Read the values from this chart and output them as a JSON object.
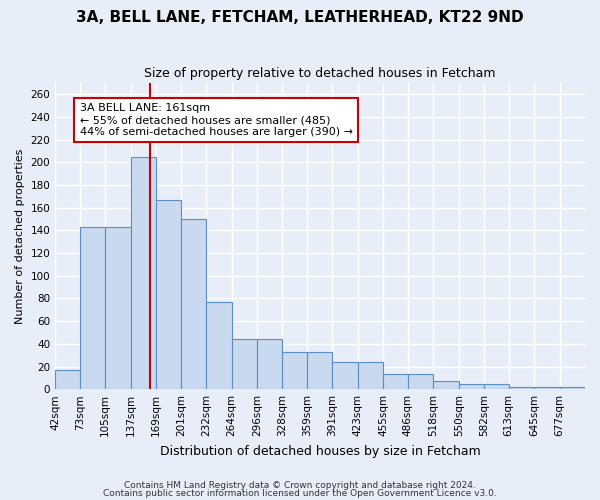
{
  "title1": "3A, BELL LANE, FETCHAM, LEATHERHEAD, KT22 9ND",
  "title2": "Size of property relative to detached houses in Fetcham",
  "xlabel": "Distribution of detached houses by size in Fetcham",
  "ylabel": "Number of detached properties",
  "bin_labels": [
    "42sqm",
    "73sqm",
    "105sqm",
    "137sqm",
    "169sqm",
    "201sqm",
    "232sqm",
    "264sqm",
    "296sqm",
    "328sqm",
    "359sqm",
    "391sqm",
    "423sqm",
    "455sqm",
    "486sqm",
    "518sqm",
    "550sqm",
    "582sqm",
    "613sqm",
    "645sqm",
    "677sqm"
  ],
  "bin_edges": [
    42,
    73,
    105,
    137,
    169,
    201,
    232,
    264,
    296,
    328,
    359,
    391,
    423,
    455,
    486,
    518,
    550,
    582,
    613,
    645,
    677
  ],
  "bar_heights": [
    17,
    143,
    143,
    205,
    167,
    150,
    77,
    44,
    44,
    33,
    33,
    24,
    24,
    13,
    13,
    7,
    5,
    5,
    2,
    2,
    2
  ],
  "bar_color": "#c9d9ef",
  "bar_edge_color": "#5b8dc8",
  "vline_x": 161,
  "vline_color": "#cc0000",
  "ylim": [
    0,
    270
  ],
  "yticks": [
    0,
    20,
    40,
    60,
    80,
    100,
    120,
    140,
    160,
    180,
    200,
    220,
    240,
    260
  ],
  "annotation_title": "3A BELL LANE: 161sqm",
  "annotation_line1": "← 55% of detached houses are smaller (485)",
  "annotation_line2": "44% of semi-detached houses are larger (390) →",
  "annotation_box_color": "#ffffff",
  "annotation_box_edge": "#cc0000",
  "footer1": "Contains HM Land Registry data © Crown copyright and database right 2024.",
  "footer2": "Contains public sector information licensed under the Open Government Licence v3.0.",
  "bg_color": "#e8eef8",
  "grid_color": "#ffffff",
  "title1_fontsize": 11,
  "title2_fontsize": 9,
  "ylabel_fontsize": 8,
  "xlabel_fontsize": 9,
  "tick_fontsize": 7.5,
  "footer_fontsize": 6.5
}
